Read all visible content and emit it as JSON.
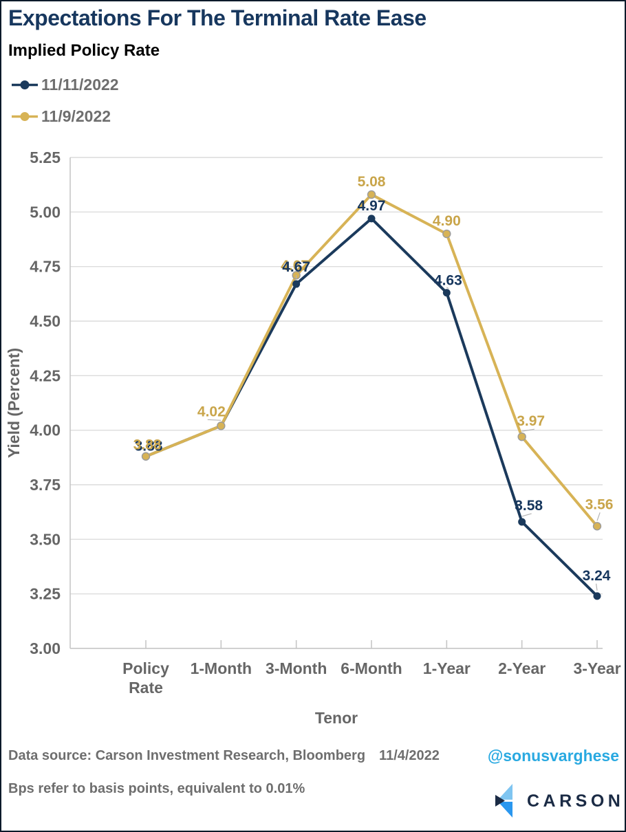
{
  "header": {
    "title": "Expectations For The Terminal Rate Ease",
    "subtitle": "Implied Policy Rate",
    "title_color": "#17375e"
  },
  "legend": {
    "items": [
      {
        "label": "11/11/2022",
        "color": "#1b3a5c"
      },
      {
        "label": "11/9/2022",
        "color": "#d7b356"
      }
    ]
  },
  "chart_data": {
    "type": "line",
    "title": "Implied Policy Rate",
    "xlabel": "Tenor",
    "ylabel": "Yield (Percent)",
    "categories": [
      "Policy Rate",
      "1-Month",
      "3-Month",
      "6-Month",
      "1-Year",
      "2-Year",
      "3-Year"
    ],
    "ylim": [
      3.0,
      5.25
    ],
    "ytick_step": 0.25,
    "yticks": [
      "5.25",
      "5.00",
      "4.75",
      "4.50",
      "4.25",
      "4.00",
      "3.75",
      "3.50",
      "3.25",
      "3.00"
    ],
    "grid": "horizontal",
    "legend_position": "top-left",
    "series": [
      {
        "name": "11/11/2022",
        "color": "#1b3a5c",
        "label_color": "#17375e",
        "values": [
          3.88,
          4.02,
          4.67,
          4.97,
          4.63,
          3.58,
          3.24
        ],
        "point_labels": [
          "",
          "",
          "4.67",
          "4.97",
          "4.63",
          "3.58",
          "3.24"
        ]
      },
      {
        "name": "11/9/2022",
        "color": "#d7b356",
        "label_color": "#c9a54a",
        "values": [
          3.88,
          4.02,
          4.71,
          5.08,
          4.9,
          3.97,
          3.56
        ],
        "point_labels": [
          "3.88",
          "4.02",
          "",
          "5.08",
          "4.90",
          "3.97",
          "3.56"
        ]
      }
    ]
  },
  "footer": {
    "source_label": "Data source: Carson Investment Research, Bloomberg",
    "source_date": "11/4/2022",
    "note": "Bps refer to basis points, equivalent to 0.01%",
    "handle": "@sonusvarghese",
    "handle_color": "#29a9e1",
    "logo": {
      "text": "CARSON",
      "text_color": "#1b2b45",
      "mark_colors": {
        "light": "#7fc5f1",
        "mid": "#2a97ef",
        "dark": "#1b2b45"
      }
    }
  }
}
